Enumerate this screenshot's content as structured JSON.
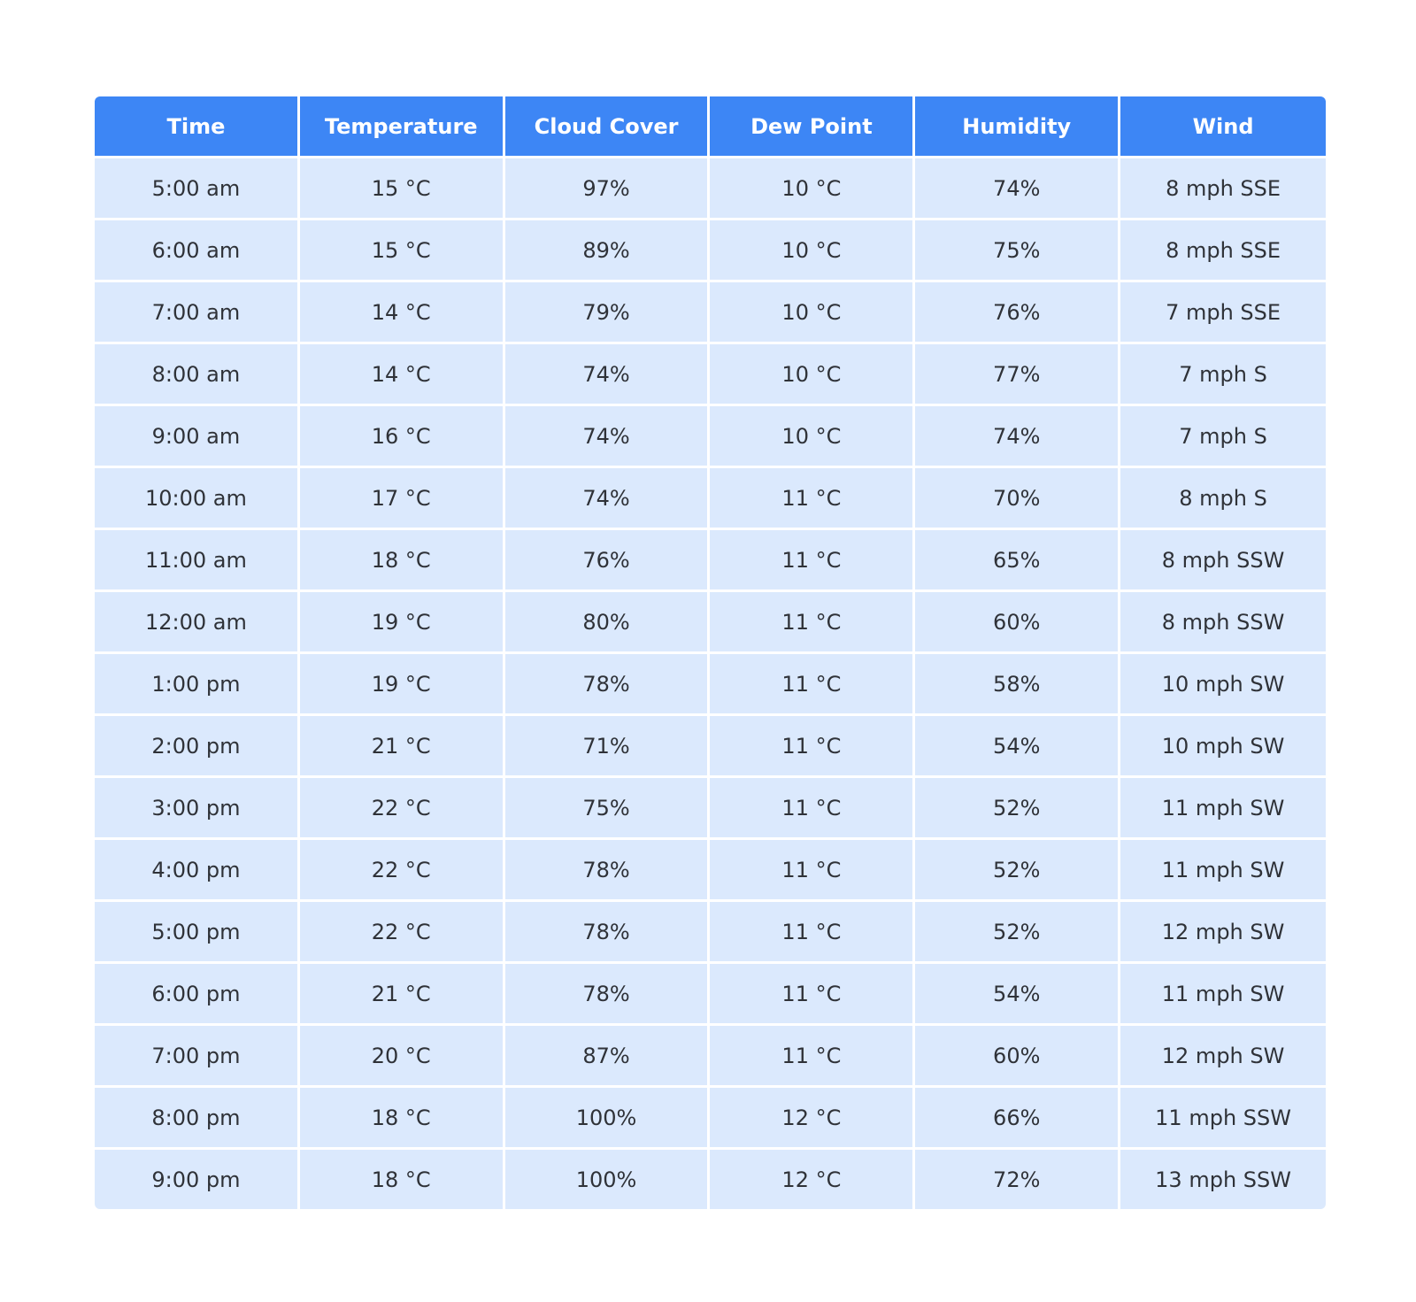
{
  "colors": {
    "header_bg": "#3d86f5",
    "header_text": "#ffffff",
    "cell_bg": "#dbe9fd",
    "cell_text": "#2f3238"
  },
  "table": {
    "headers": [
      "Time",
      "Temperature",
      "Cloud Cover",
      "Dew Point",
      "Humidity",
      "Wind"
    ],
    "rows": [
      [
        "5:00 am",
        "15 °C",
        "97%",
        "10 °C",
        "74%",
        "8 mph SSE"
      ],
      [
        "6:00 am",
        "15 °C",
        "89%",
        "10 °C",
        "75%",
        "8 mph SSE"
      ],
      [
        "7:00 am",
        "14 °C",
        "79%",
        "10 °C",
        "76%",
        "7 mph SSE"
      ],
      [
        "8:00 am",
        "14 °C",
        "74%",
        "10 °C",
        "77%",
        "7 mph S"
      ],
      [
        "9:00 am",
        "16 °C",
        "74%",
        "10 °C",
        "74%",
        "7 mph S"
      ],
      [
        "10:00 am",
        "17 °C",
        "74%",
        "11 °C",
        "70%",
        "8 mph S"
      ],
      [
        "11:00 am",
        "18 °C",
        "76%",
        "11 °C",
        "65%",
        "8 mph SSW"
      ],
      [
        "12:00 am",
        "19 °C",
        "80%",
        "11 °C",
        "60%",
        "8 mph SSW"
      ],
      [
        "1:00 pm",
        "19 °C",
        "78%",
        "11 °C",
        "58%",
        "10 mph SW"
      ],
      [
        "2:00 pm",
        "21 °C",
        "71%",
        "11 °C",
        "54%",
        "10 mph SW"
      ],
      [
        "3:00 pm",
        "22 °C",
        "75%",
        "11 °C",
        "52%",
        "11 mph SW"
      ],
      [
        "4:00 pm",
        "22 °C",
        "78%",
        "11 °C",
        "52%",
        "11 mph SW"
      ],
      [
        "5:00 pm",
        "22 °C",
        "78%",
        "11 °C",
        "52%",
        "12 mph SW"
      ],
      [
        "6:00 pm",
        "21 °C",
        "78%",
        "11 °C",
        "54%",
        "11 mph SW"
      ],
      [
        "7:00 pm",
        "20 °C",
        "87%",
        "11 °C",
        "60%",
        "12 mph SW"
      ],
      [
        "8:00 pm",
        "18 °C",
        "100%",
        "12 °C",
        "66%",
        "11 mph SSW"
      ],
      [
        "9:00 pm",
        "18 °C",
        "100%",
        "12 °C",
        "72%",
        "13 mph SSW"
      ]
    ]
  }
}
